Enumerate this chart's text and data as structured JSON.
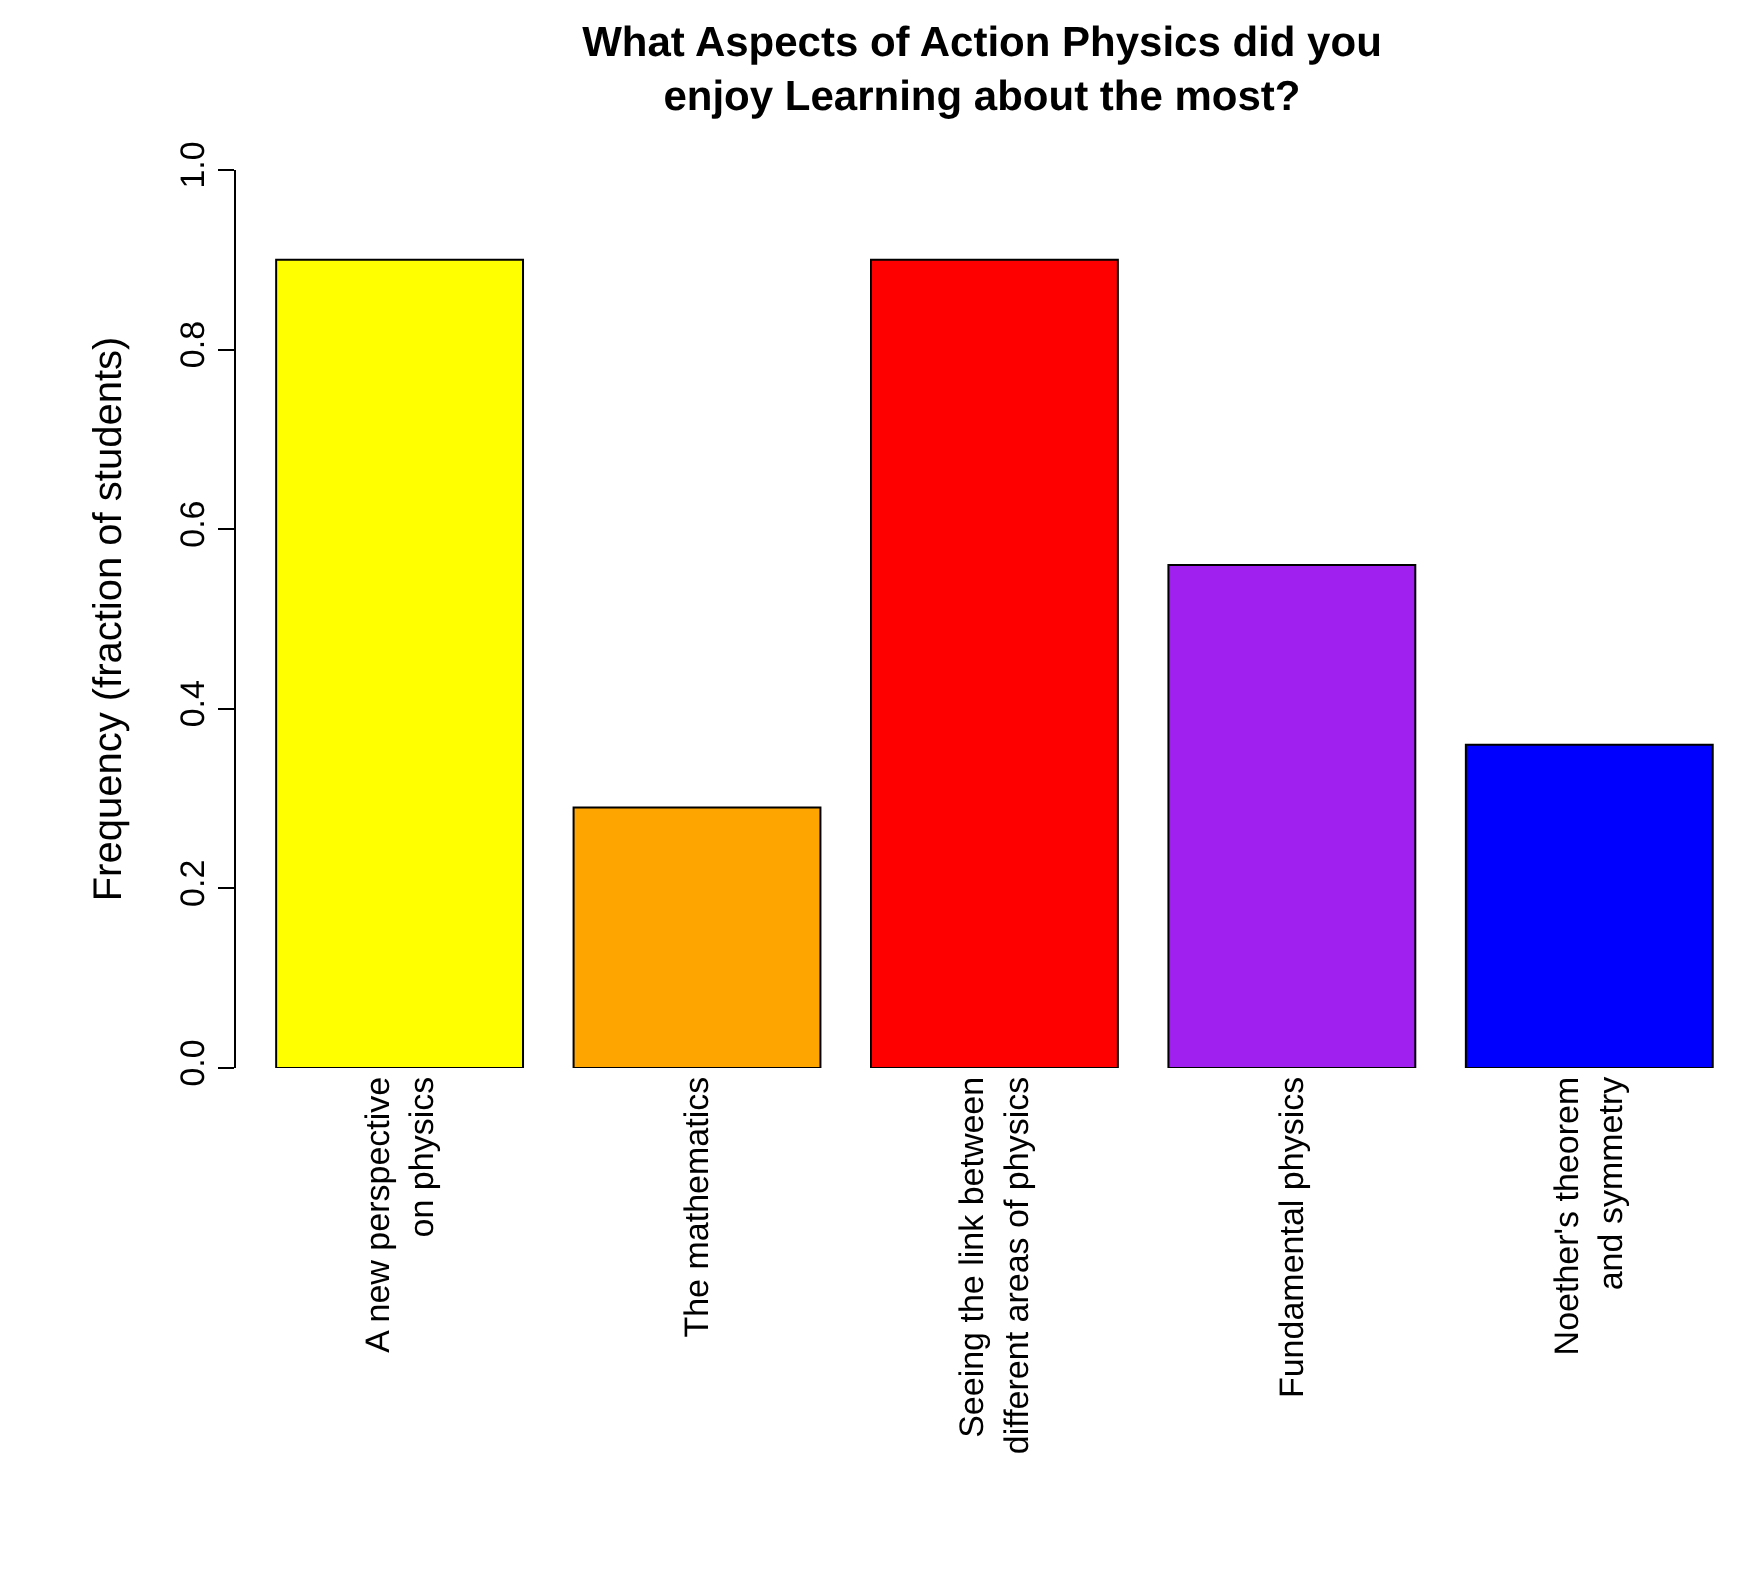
{
  "chart_data": {
    "type": "bar",
    "title": "What Aspects of Action Physics did you\nenjoy Learning about the most?",
    "ylabel": "Frequency (fraction of students)",
    "categories": [
      "A new perspective\non physics",
      "The mathematics",
      "Seeing the link between\ndifferent areas of physics",
      "Fundamental physics",
      "Noether's theorem\nand symmetry"
    ],
    "values": [
      0.9,
      0.29,
      0.9,
      0.56,
      0.36
    ],
    "colors": [
      "#ffff00",
      "#ffa500",
      "#ff0000",
      "#a020f0",
      "#0000ff"
    ],
    "ylim": [
      0,
      1
    ],
    "yticks": [
      {
        "value": 0,
        "label": "0.0"
      },
      {
        "value": 0.2,
        "label": "0.2"
      },
      {
        "value": 0.4,
        "label": "0.4"
      },
      {
        "value": 0.6,
        "label": "0.6"
      },
      {
        "value": 0.8,
        "label": "0.8"
      },
      {
        "value": 1,
        "label": "1.0"
      }
    ],
    "grid": false
  }
}
